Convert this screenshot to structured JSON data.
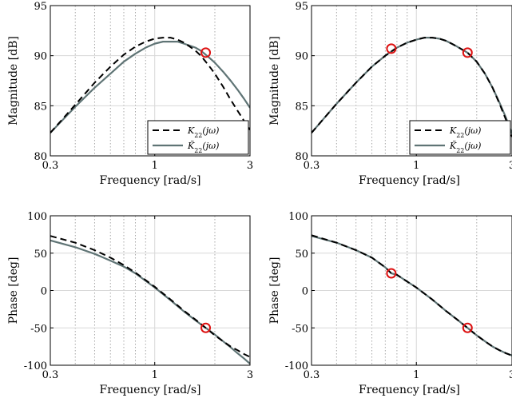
{
  "chart_data": [
    {
      "type": "line",
      "title": "",
      "xlabel": "Frequency [rad/s]",
      "ylabel": "Magnitude [dB]",
      "xscale": "log",
      "xlim": [
        0.3,
        3
      ],
      "ylim": [
        80,
        95
      ],
      "xticks": [
        0.3,
        1,
        3
      ],
      "xtick_labels": [
        "0.3",
        "1",
        "3"
      ],
      "yticks": [
        80,
        85,
        90,
        95
      ],
      "ytick_labels": [
        "80",
        "85",
        "90",
        "95"
      ],
      "grid": true,
      "legend": "bottom-right",
      "series": [
        {
          "name": "K22(jω)",
          "style": "dashed",
          "color": "#000000",
          "x": [
            0.3,
            0.4,
            0.5,
            0.6,
            0.7,
            0.8,
            0.9,
            1.0,
            1.1,
            1.2,
            1.3,
            1.4,
            1.5,
            1.6,
            1.7,
            1.8,
            1.9,
            2.0,
            2.2,
            2.4,
            2.6,
            2.8,
            3.0
          ],
          "y": [
            82.3,
            85.1,
            87.3,
            88.9,
            90.1,
            90.9,
            91.4,
            91.7,
            91.8,
            91.8,
            91.6,
            91.3,
            90.9,
            90.5,
            90.0,
            89.4,
            88.8,
            88.2,
            86.9,
            85.6,
            84.5,
            83.5,
            82.6
          ]
        },
        {
          "name": "K̃22(jω)",
          "style": "solid",
          "color": "#5f7475",
          "x": [
            0.3,
            0.4,
            0.5,
            0.6,
            0.7,
            0.8,
            0.9,
            1.0,
            1.1,
            1.2,
            1.3,
            1.4,
            1.5,
            1.6,
            1.7,
            1.8,
            1.9,
            2.0,
            2.2,
            2.4,
            2.6,
            2.8,
            3.0
          ],
          "y": [
            82.3,
            84.9,
            86.8,
            88.2,
            89.4,
            90.2,
            90.8,
            91.2,
            91.4,
            91.4,
            91.4,
            91.2,
            91.0,
            90.8,
            90.5,
            90.1,
            89.7,
            89.3,
            88.4,
            87.5,
            86.6,
            85.7,
            84.8
          ]
        }
      ],
      "markers": [
        {
          "x": 1.8,
          "y": 90.3,
          "color": "#dd1111"
        }
      ]
    },
    {
      "type": "line",
      "title": "",
      "xlabel": "Frequency [rad/s]",
      "ylabel": "Magnitude [dB]",
      "xscale": "log",
      "xlim": [
        0.3,
        3
      ],
      "ylim": [
        80,
        95
      ],
      "xticks": [
        0.3,
        1,
        3
      ],
      "xtick_labels": [
        "0.3",
        "1",
        "3"
      ],
      "yticks": [
        80,
        85,
        90,
        95
      ],
      "ytick_labels": [
        "80",
        "85",
        "90",
        "95"
      ],
      "grid": true,
      "legend": "bottom-right",
      "series": [
        {
          "name": "K22(jω)",
          "style": "dashed",
          "color": "#000000",
          "x": [
            0.3,
            0.4,
            0.5,
            0.6,
            0.7,
            0.8,
            0.9,
            1.0,
            1.1,
            1.2,
            1.3,
            1.4,
            1.5,
            1.6,
            1.8,
            2.0,
            2.2,
            2.4,
            2.6,
            2.8,
            3.0
          ],
          "y": [
            82.3,
            85.2,
            87.3,
            88.9,
            90.0,
            90.8,
            91.3,
            91.6,
            91.8,
            91.8,
            91.7,
            91.5,
            91.2,
            90.9,
            90.3,
            89.4,
            88.2,
            86.8,
            85.2,
            83.6,
            81.9
          ]
        },
        {
          "name": "K̃22(jω)",
          "style": "solid",
          "color": "#5f7475",
          "x": [
            0.3,
            0.4,
            0.5,
            0.6,
            0.7,
            0.8,
            0.9,
            1.0,
            1.1,
            1.2,
            1.3,
            1.4,
            1.5,
            1.6,
            1.8,
            2.0,
            2.2,
            2.4,
            2.6,
            2.8,
            3.0
          ],
          "y": [
            82.3,
            85.2,
            87.3,
            88.9,
            90.0,
            90.8,
            91.3,
            91.6,
            91.8,
            91.8,
            91.7,
            91.5,
            91.2,
            90.9,
            90.3,
            89.4,
            88.2,
            86.8,
            85.3,
            83.8,
            82.2
          ]
        }
      ],
      "markers": [
        {
          "x": 0.75,
          "y": 90.7,
          "color": "#dd1111"
        },
        {
          "x": 1.8,
          "y": 90.3,
          "color": "#dd1111"
        }
      ]
    },
    {
      "type": "line",
      "title": "",
      "xlabel": "Frequency [rad/s]",
      "ylabel": "Phase [deg]",
      "xscale": "log",
      "xlim": [
        0.3,
        3
      ],
      "ylim": [
        -100,
        100
      ],
      "xticks": [
        0.3,
        1,
        3
      ],
      "xtick_labels": [
        "0.3",
        "1",
        "3"
      ],
      "yticks": [
        -100,
        -50,
        0,
        50,
        100
      ],
      "ytick_labels": [
        "-100",
        "-50",
        "0",
        "50",
        "100"
      ],
      "grid": true,
      "legend": "none",
      "series": [
        {
          "name": "K22(jω)",
          "style": "dashed",
          "color": "#000000",
          "x": [
            0.3,
            0.4,
            0.5,
            0.6,
            0.7,
            0.8,
            0.9,
            1.0,
            1.2,
            1.4,
            1.6,
            1.8,
            2.0,
            2.2,
            2.4,
            2.6,
            2.8,
            3.0
          ],
          "y": [
            73,
            64,
            54,
            44,
            34,
            24,
            14,
            5,
            -12,
            -27,
            -39,
            -50,
            -60,
            -68,
            -75,
            -80,
            -85,
            -89
          ]
        },
        {
          "name": "K̃22(jω)",
          "style": "solid",
          "color": "#5f7475",
          "x": [
            0.3,
            0.4,
            0.5,
            0.6,
            0.7,
            0.8,
            0.9,
            1.0,
            1.2,
            1.4,
            1.6,
            1.8,
            2.0,
            2.2,
            2.4,
            2.6,
            2.8,
            3.0
          ],
          "y": [
            67,
            58,
            49,
            40,
            32,
            23,
            13,
            4,
            -13,
            -28,
            -40,
            -50,
            -59,
            -68,
            -76,
            -84,
            -91,
            -98
          ]
        }
      ],
      "markers": [
        {
          "x": 1.8,
          "y": -50,
          "color": "#dd1111"
        }
      ]
    },
    {
      "type": "line",
      "title": "",
      "xlabel": "Frequency [rad/s]",
      "ylabel": "Phase [deg]",
      "xscale": "log",
      "xlim": [
        0.3,
        3
      ],
      "ylim": [
        -100,
        100
      ],
      "xticks": [
        0.3,
        1,
        3
      ],
      "xtick_labels": [
        "0.3",
        "1",
        "3"
      ],
      "yticks": [
        -100,
        -50,
        0,
        50,
        100
      ],
      "ytick_labels": [
        "-100",
        "-50",
        "0",
        "50",
        "100"
      ],
      "grid": true,
      "legend": "none",
      "series": [
        {
          "name": "K22(jω)",
          "style": "dashed",
          "color": "#000000",
          "x": [
            0.3,
            0.4,
            0.5,
            0.6,
            0.7,
            0.75,
            0.8,
            0.9,
            1.0,
            1.2,
            1.4,
            1.6,
            1.8,
            2.0,
            2.2,
            2.4,
            2.6,
            2.8,
            3.0
          ],
          "y": [
            74,
            64,
            54,
            44,
            31,
            23,
            21,
            12,
            4,
            -12,
            -27,
            -39,
            -50,
            -60,
            -68,
            -75,
            -80,
            -84,
            -87
          ]
        },
        {
          "name": "K̃22(jω)",
          "style": "solid",
          "color": "#5f7475",
          "x": [
            0.3,
            0.4,
            0.5,
            0.6,
            0.7,
            0.75,
            0.8,
            0.9,
            1.0,
            1.2,
            1.4,
            1.6,
            1.8,
            2.0,
            2.2,
            2.4,
            2.6,
            2.8,
            3.0
          ],
          "y": [
            73,
            64,
            54,
            44,
            31,
            23,
            21,
            12,
            4,
            -12,
            -27,
            -39,
            -50,
            -60,
            -68,
            -75,
            -80,
            -84,
            -87
          ]
        }
      ],
      "markers": [
        {
          "x": 0.75,
          "y": 23,
          "color": "#dd1111"
        },
        {
          "x": 1.8,
          "y": -50,
          "color": "#dd1111"
        }
      ]
    }
  ]
}
